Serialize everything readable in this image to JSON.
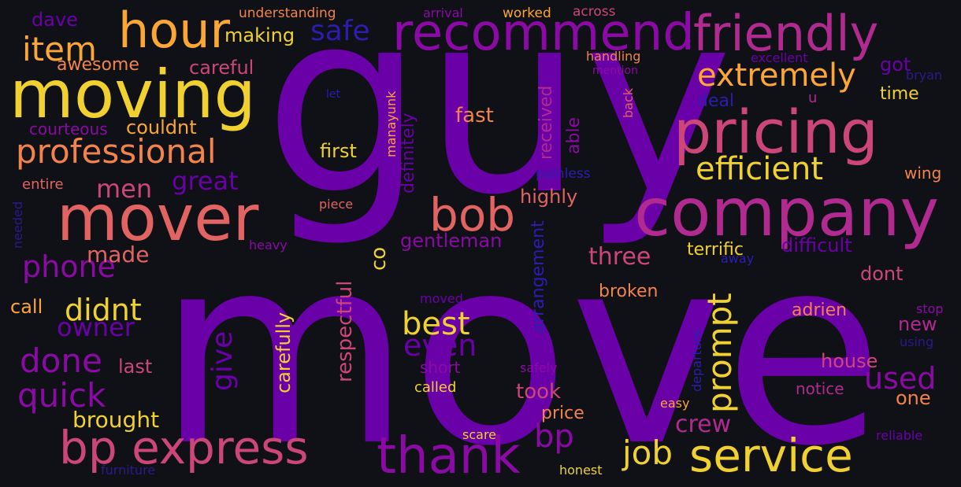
{
  "words": [
    "move",
    "guy",
    "moving",
    "mover",
    "company",
    "pricing",
    "recommend",
    "friendly",
    "hour",
    "service",
    "thank",
    "bp express",
    "bob",
    "professional",
    "item",
    "extremely",
    "efficient",
    "dave",
    "safe",
    "awesome",
    "careful",
    "making",
    "courteous",
    "couldnt",
    "first",
    "men",
    "great",
    "entire",
    "needed",
    "phone",
    "made",
    "didnt",
    "call",
    "done",
    "quick",
    "owner",
    "last",
    "brought",
    "give",
    "carefully",
    "respectful",
    "best",
    "even",
    "short",
    "called",
    "took",
    "price",
    "job",
    "bp",
    "prompt",
    "crew",
    "three",
    "highly",
    "gentleman",
    "arrangement",
    "co",
    "definitely",
    "received",
    "manayunk",
    "able",
    "painless",
    "fast",
    "deal",
    "back",
    "handling",
    "mention",
    "let",
    "heavy",
    "piece",
    "terrific",
    "difficult",
    "broken",
    "dont",
    "house",
    "notice",
    "used",
    "one",
    "new",
    "adrien",
    "stop",
    "using",
    "departure",
    "easy",
    "scare",
    "honest",
    "reliable",
    "furniture",
    "safely",
    "moved",
    "away",
    "wing",
    "time",
    "got",
    "bryan",
    "u",
    "excellent",
    "understanding",
    "arrival",
    "worked",
    "across"
  ]
}
